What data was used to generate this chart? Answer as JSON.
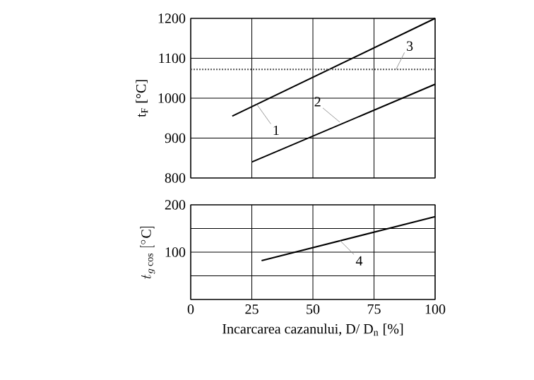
{
  "chart_data": [
    {
      "type": "line",
      "ylabel": "t$_{F}$ [°C]",
      "xlim": [
        0,
        100
      ],
      "xticks": [
        0,
        25,
        50,
        75,
        100
      ],
      "ylim": [
        800,
        1200
      ],
      "yticks": [
        800,
        900,
        1000,
        1100,
        1200
      ],
      "grid": true,
      "tick_labels": "y",
      "series": [
        {
          "color": "#000000",
          "x": [
            17,
            100
          ],
          "values": [
            955,
            1200
          ]
        },
        {
          "color": "#000000",
          "x": [
            25,
            100
          ],
          "values": [
            840,
            1035
          ]
        },
        {
          "color": "#555555",
          "line_style": "dotted",
          "x": [
            0,
            100
          ],
          "values": [
            1072,
            1072
          ]
        }
      ],
      "annotations": [
        {
          "text": "1",
          "x": 27,
          "y": 985
        },
        {
          "text": "2",
          "x": 61,
          "y": 940
        },
        {
          "text": "3",
          "x": 84,
          "y": 1072
        }
      ]
    },
    {
      "type": "line",
      "ylabel": "t_{g\\,\\mathrm{cos}}\\ [^{\\circ}\\mathrm{C}]",
      "xlabel": "Incarcarea cazanului, D/ D$_{n}$ [%]",
      "xlim": [
        0,
        100
      ],
      "xticks": [
        0,
        25,
        50,
        75,
        100
      ],
      "ylim": [
        0,
        200
      ],
      "yticks": [
        {
          "value": 0,
          "label": null
        },
        {
          "value": 50,
          "label": null
        },
        100,
        {
          "value": 150,
          "label": null
        },
        200
      ],
      "grid": true,
      "series": [
        {
          "color": "#000000",
          "x": [
            29,
            100
          ],
          "values": [
            82,
            175
          ]
        }
      ],
      "annotations": [
        {
          "text": "4",
          "x": 61,
          "y": 125
        }
      ]
    }
  ]
}
